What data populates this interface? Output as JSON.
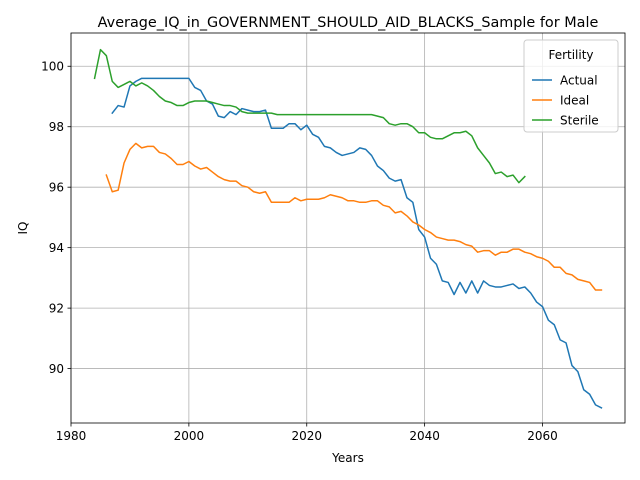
{
  "chart_data": {
    "type": "line",
    "title": "Average_IQ_in_GOVERNMENT_SHOULD_AID_BLACKS_Sample for Male",
    "xlabel": "Years",
    "ylabel": "IQ",
    "xlim": [
      1980,
      2074
    ],
    "ylim": [
      88.2,
      101.1
    ],
    "xticks": [
      1980,
      2000,
      2020,
      2040,
      2060
    ],
    "yticks": [
      90,
      92,
      94,
      96,
      98,
      100
    ],
    "grid": true,
    "legend": {
      "title": "Fertility",
      "placement": "top-right"
    },
    "series": [
      {
        "name": "Actual",
        "color": "#1f77b4",
        "x": [
          1987,
          1988,
          1989,
          1990,
          1991,
          1992,
          1993,
          1994,
          1995,
          1996,
          1997,
          1998,
          1999,
          2000,
          2001,
          2002,
          2003,
          2004,
          2005,
          2006,
          2007,
          2008,
          2009,
          2010,
          2011,
          2012,
          2013,
          2014,
          2015,
          2016,
          2017,
          2018,
          2019,
          2020,
          2021,
          2022,
          2023,
          2024,
          2025,
          2026,
          2027,
          2028,
          2029,
          2030,
          2031,
          2032,
          2033,
          2034,
          2035,
          2036,
          2037,
          2038,
          2039,
          2040,
          2041,
          2042,
          2043,
          2044,
          2045,
          2046,
          2047,
          2048,
          2049,
          2050,
          2051,
          2052,
          2053,
          2054,
          2055,
          2056,
          2057,
          2058,
          2059,
          2060,
          2061,
          2062,
          2063,
          2064,
          2065,
          2066,
          2067,
          2068,
          2069,
          2070
        ],
        "y": [
          98.45,
          98.7,
          98.65,
          99.35,
          99.5,
          99.6,
          99.6,
          99.6,
          99.6,
          99.6,
          99.6,
          99.6,
          99.6,
          99.6,
          99.3,
          99.2,
          98.85,
          98.75,
          98.35,
          98.3,
          98.5,
          98.4,
          98.6,
          98.55,
          98.5,
          98.5,
          98.55,
          97.95,
          97.95,
          97.95,
          98.1,
          98.1,
          97.9,
          98.05,
          97.75,
          97.65,
          97.35,
          97.3,
          97.15,
          97.05,
          97.1,
          97.15,
          97.3,
          97.25,
          97.05,
          96.7,
          96.55,
          96.3,
          96.2,
          96.25,
          95.65,
          95.5,
          94.6,
          94.35,
          93.65,
          93.45,
          92.9,
          92.85,
          92.45,
          92.85,
          92.5,
          92.9,
          92.5,
          92.9,
          92.75,
          92.7,
          92.7,
          92.75,
          92.8,
          92.65,
          92.7,
          92.5,
          92.2,
          92.05,
          91.6,
          91.45,
          90.95,
          90.85,
          90.1,
          89.9,
          89.3,
          89.15,
          88.8,
          88.7
        ]
      },
      {
        "name": "Ideal",
        "color": "#ff7f0e",
        "x": [
          1986,
          1987,
          1988,
          1989,
          1990,
          1991,
          1992,
          1993,
          1994,
          1995,
          1996,
          1997,
          1998,
          1999,
          2000,
          2001,
          2002,
          2003,
          2004,
          2005,
          2006,
          2007,
          2008,
          2009,
          2010,
          2011,
          2012,
          2013,
          2014,
          2015,
          2016,
          2017,
          2018,
          2019,
          2020,
          2021,
          2022,
          2023,
          2024,
          2025,
          2026,
          2027,
          2028,
          2029,
          2030,
          2031,
          2032,
          2033,
          2034,
          2035,
          2036,
          2037,
          2038,
          2039,
          2040,
          2041,
          2042,
          2043,
          2044,
          2045,
          2046,
          2047,
          2048,
          2049,
          2050,
          2051,
          2052,
          2053,
          2054,
          2055,
          2056,
          2057,
          2058,
          2059,
          2060,
          2061,
          2062,
          2063,
          2064,
          2065,
          2066,
          2067,
          2068,
          2069,
          2070
        ],
        "y": [
          96.4,
          95.85,
          95.9,
          96.8,
          97.25,
          97.45,
          97.3,
          97.35,
          97.35,
          97.15,
          97.1,
          96.95,
          96.75,
          96.75,
          96.85,
          96.7,
          96.6,
          96.65,
          96.5,
          96.35,
          96.25,
          96.2,
          96.2,
          96.05,
          96.0,
          95.85,
          95.8,
          95.85,
          95.5,
          95.5,
          95.5,
          95.5,
          95.65,
          95.55,
          95.6,
          95.6,
          95.6,
          95.65,
          95.75,
          95.7,
          95.65,
          95.55,
          95.55,
          95.5,
          95.5,
          95.55,
          95.55,
          95.4,
          95.35,
          95.15,
          95.2,
          95.05,
          94.85,
          94.75,
          94.6,
          94.5,
          94.35,
          94.3,
          94.25,
          94.25,
          94.2,
          94.1,
          94.05,
          93.85,
          93.9,
          93.9,
          93.75,
          93.85,
          93.85,
          93.95,
          93.95,
          93.85,
          93.8,
          93.7,
          93.65,
          93.55,
          93.35,
          93.35,
          93.15,
          93.1,
          92.95,
          92.9,
          92.85,
          92.6,
          92.6
        ]
      },
      {
        "name": "Sterile",
        "color": "#2ca02c",
        "x": [
          1984,
          1985,
          1986,
          1987,
          1988,
          1989,
          1990,
          1991,
          1992,
          1993,
          1994,
          1995,
          1996,
          1997,
          1998,
          1999,
          2000,
          2001,
          2002,
          2003,
          2004,
          2005,
          2006,
          2007,
          2008,
          2009,
          2010,
          2011,
          2012,
          2013,
          2014,
          2015,
          2016,
          2017,
          2018,
          2019,
          2020,
          2021,
          2022,
          2023,
          2024,
          2025,
          2026,
          2027,
          2028,
          2029,
          2030,
          2031,
          2032,
          2033,
          2034,
          2035,
          2036,
          2037,
          2038,
          2039,
          2040,
          2041,
          2042,
          2043,
          2044,
          2045,
          2046,
          2047,
          2048,
          2049,
          2050,
          2051,
          2052,
          2053,
          2054,
          2055,
          2056,
          2057
        ],
        "y": [
          99.6,
          100.55,
          100.35,
          99.5,
          99.3,
          99.4,
          99.5,
          99.35,
          99.45,
          99.35,
          99.2,
          99.0,
          98.85,
          98.8,
          98.7,
          98.7,
          98.8,
          98.85,
          98.85,
          98.85,
          98.8,
          98.75,
          98.7,
          98.7,
          98.65,
          98.5,
          98.45,
          98.45,
          98.45,
          98.45,
          98.45,
          98.4,
          98.4,
          98.4,
          98.4,
          98.4,
          98.4,
          98.4,
          98.4,
          98.4,
          98.4,
          98.4,
          98.4,
          98.4,
          98.4,
          98.4,
          98.4,
          98.4,
          98.35,
          98.3,
          98.1,
          98.05,
          98.1,
          98.1,
          98.0,
          97.8,
          97.8,
          97.65,
          97.6,
          97.6,
          97.7,
          97.8,
          97.8,
          97.85,
          97.7,
          97.3,
          97.05,
          96.8,
          96.45,
          96.5,
          96.35,
          96.4,
          96.15,
          96.35
        ]
      }
    ]
  }
}
